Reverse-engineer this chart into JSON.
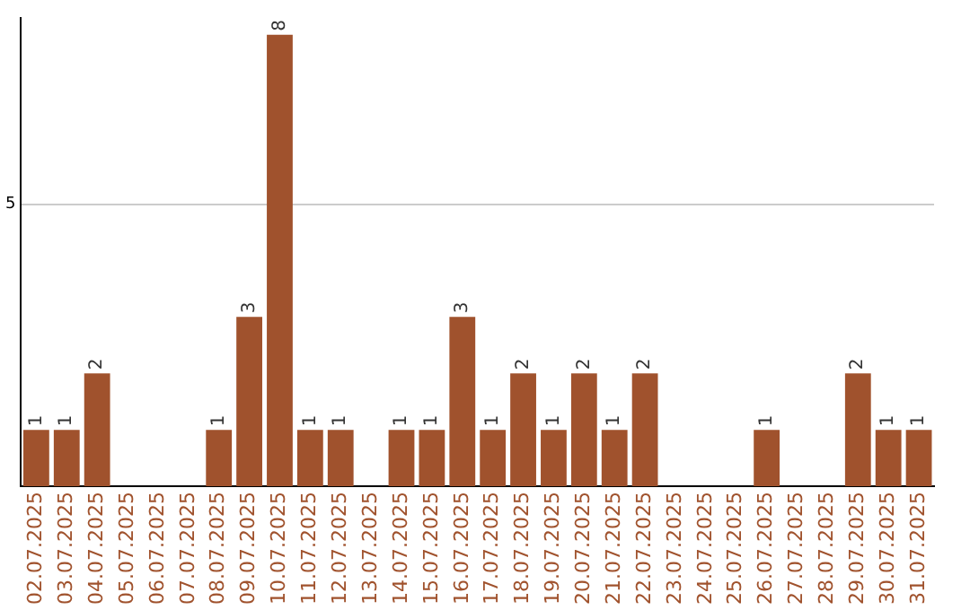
{
  "chart_data": {
    "type": "bar",
    "categories": [
      "02.07.2025",
      "03.07.2025",
      "04.07.2025",
      "05.07.2025",
      "06.07.2025",
      "07.07.2025",
      "08.07.2025",
      "09.07.2025",
      "10.07.2025",
      "11.07.2025",
      "12.07.2025",
      "13.07.2025",
      "14.07.2025",
      "15.07.2025",
      "16.07.2025",
      "17.07.2025",
      "18.07.2025",
      "19.07.2025",
      "20.07.2025",
      "21.07.2025",
      "22.07.2025",
      "23.07.2025",
      "24.07.2025",
      "25.07.2025",
      "26.07.2025",
      "27.07.2025",
      "28.07.2025",
      "29.07.2025",
      "30.07.2025",
      "31.07.2025"
    ],
    "values": [
      1,
      1,
      2,
      0,
      0,
      0,
      1,
      3,
      8,
      1,
      1,
      0,
      1,
      1,
      3,
      1,
      2,
      1,
      2,
      1,
      2,
      0,
      0,
      0,
      1,
      0,
      0,
      2,
      1,
      1
    ],
    "value_labels": [
      "1",
      "1",
      "2",
      null,
      null,
      null,
      "1",
      "3",
      "8",
      "1",
      "1",
      null,
      "1",
      "1",
      "3",
      "1",
      "2",
      "1",
      "2",
      "1",
      "2",
      null,
      null,
      null,
      "1",
      null,
      null,
      "2",
      "1",
      "1"
    ],
    "color": "#a0522d",
    "ylim": [
      0,
      8.3
    ],
    "yticks": [
      5
    ],
    "grid": "y",
    "legend": false
  }
}
